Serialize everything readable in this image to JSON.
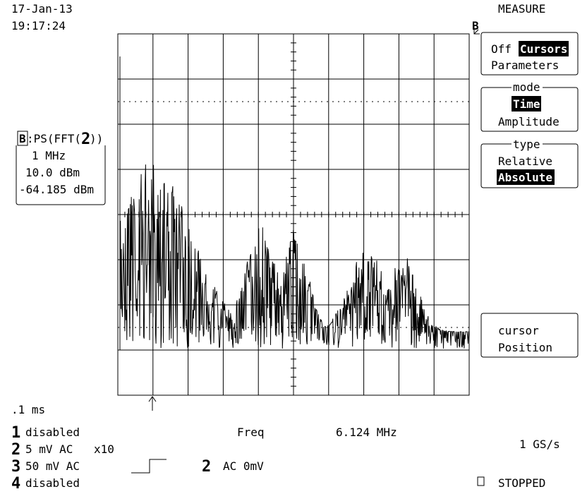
{
  "header": {
    "date": "17-Jan-13",
    "time": "19:17:24",
    "menu_title": "MEASURE",
    "trace_marker": "B"
  },
  "menu": {
    "mode_row": {
      "off": "Off",
      "cursors": "Cursors",
      "parameters": "Parameters"
    },
    "mode": {
      "title": "mode",
      "time": "Time",
      "amplitude": "Amplitude"
    },
    "type": {
      "title": "type",
      "relative": "Relative",
      "absolute": "Absolute"
    },
    "cursor": {
      "line1": "cursor",
      "line2": "Position"
    }
  },
  "trace_box": {
    "badge": "B",
    "prefix": ":PS(FFT(",
    "channel": "2",
    "suffix": "))",
    "scale": "1 MHz",
    "ref": "10.0 dBm",
    "reading": "-64.185 dBm"
  },
  "footer": {
    "timebase": ".1 ms",
    "channels": [
      {
        "num": "1",
        "text": "disabled"
      },
      {
        "num": "2",
        "text": "5 mV  AC",
        "probe": "x10"
      },
      {
        "num": "3",
        "text": "50 mV  AC"
      },
      {
        "num": "4",
        "text": "disabled"
      }
    ],
    "freq_label": "Freq",
    "freq_value": "6.124 MHz",
    "sample_rate": "1 GS/s",
    "trigger_channel": "2",
    "trigger_text": "AC 0mV",
    "status": "STOPPED"
  }
}
